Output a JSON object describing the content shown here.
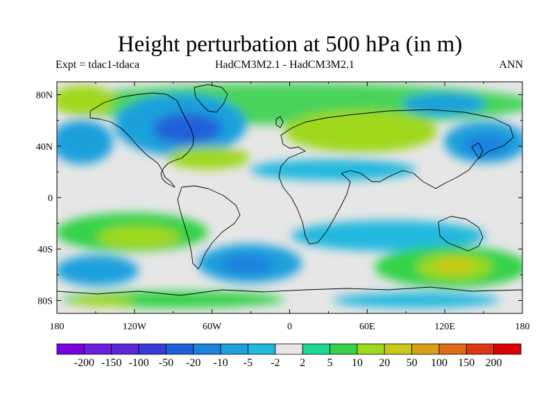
{
  "title": "Height perturbation at 500 hPa (in m)",
  "expt": "Expt = tdac1-tdaca",
  "models": "HadCM3M2.1 - HadCM3M2.1",
  "season": "ANN",
  "lat_ticks": [
    "80N",
    "40N",
    "0",
    "40S",
    "80S"
  ],
  "lon_ticks": [
    "180",
    "120W",
    "60W",
    "0",
    "60E",
    "120E",
    "180"
  ],
  "colorbar": {
    "colors": [
      "#7a00e0",
      "#6a1ee0",
      "#5a28d8",
      "#3a3ad8",
      "#2060d8",
      "#1c82de",
      "#1ea0dc",
      "#20b8de",
      "#e6e6e6",
      "#1cd890",
      "#36d24a",
      "#a0d81c",
      "#ccc818",
      "#d8a018",
      "#dc6c18",
      "#dc3810",
      "#dc0000"
    ],
    "labels": [
      "-200",
      "-150",
      "-100",
      "-50",
      "-20",
      "-10",
      "-5",
      "-2",
      "2",
      "5",
      "10",
      "20",
      "50",
      "100",
      "150",
      "200"
    ]
  },
  "chart_data": {
    "type": "heatmap",
    "title": "Height perturbation at 500 hPa (in m)",
    "subtitle_left": "Expt = tdac1-tdaca",
    "subtitle_center": "HadCM3M2.1 - HadCM3M2.1",
    "subtitle_right": "ANN",
    "xlim": [
      -180,
      180
    ],
    "ylim": [
      -90,
      90
    ],
    "units": "m",
    "levels": [
      -200,
      -150,
      -100,
      -50,
      -20,
      -10,
      -5,
      -2,
      2,
      5,
      10,
      20,
      50,
      100,
      150,
      200
    ],
    "features": [
      {
        "lon": -55,
        "lat": 53,
        "value": -15
      },
      {
        "lon": 155,
        "lat": 33,
        "value": -8
      },
      {
        "lon": -167,
        "lat": 38,
        "value": -7
      },
      {
        "lon": 55,
        "lat": 53,
        "value": 12
      },
      {
        "lon": -77,
        "lat": 30,
        "value": 12
      },
      {
        "lon": -112,
        "lat": -30,
        "value": 14
      },
      {
        "lon": 132,
        "lat": -52,
        "value": 25
      },
      {
        "lon": -38,
        "lat": -50,
        "value": -10
      },
      {
        "lon": 65,
        "lat": -22,
        "value": -7
      },
      {
        "lon": 25,
        "lat": 22,
        "value": -5
      },
      {
        "lon": -132,
        "lat": -84,
        "value": 20
      },
      {
        "lon": -148,
        "lat": -62,
        "value": -7
      }
    ]
  }
}
